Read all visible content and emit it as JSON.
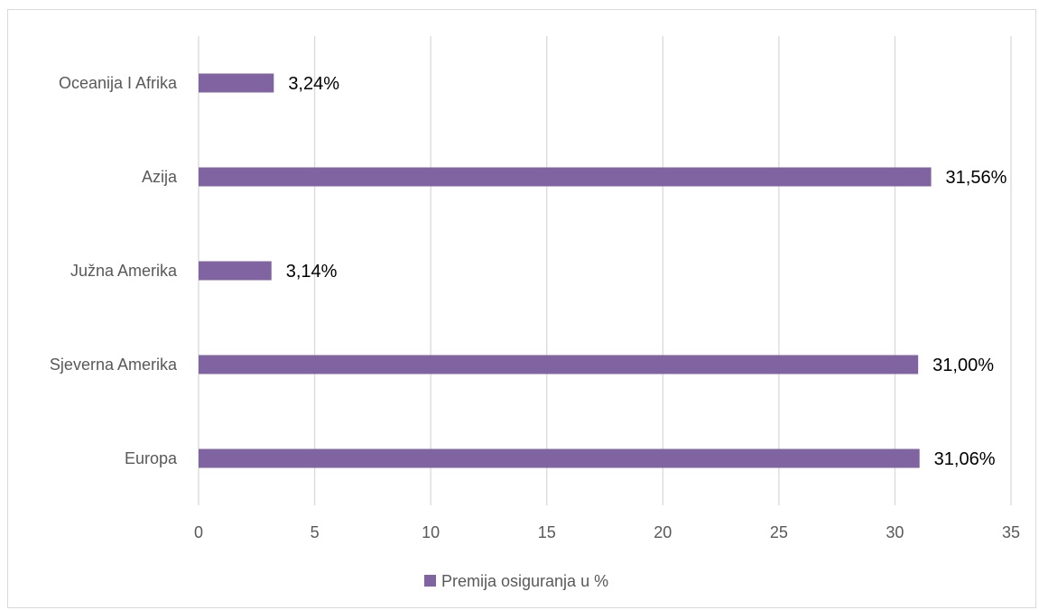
{
  "chart_data": {
    "type": "bar",
    "orientation": "horizontal",
    "categories": [
      "Oceanija I Afrika",
      "Azija",
      "Južna Amerika",
      "Sjeverna Amerika",
      "Europa"
    ],
    "series": [
      {
        "name": "Premija osiguranja u %",
        "values": [
          3.24,
          31.56,
          3.14,
          31.0,
          31.06
        ],
        "labels": [
          "3,24%",
          "31,56%",
          "3,14%",
          "31,00%",
          "31,06%"
        ],
        "color": "#8064a2"
      }
    ],
    "xlim": [
      0,
      35
    ],
    "xticks": [
      0,
      5,
      10,
      15,
      20,
      25,
      30,
      35
    ],
    "grid": true,
    "legend": "bottom"
  }
}
